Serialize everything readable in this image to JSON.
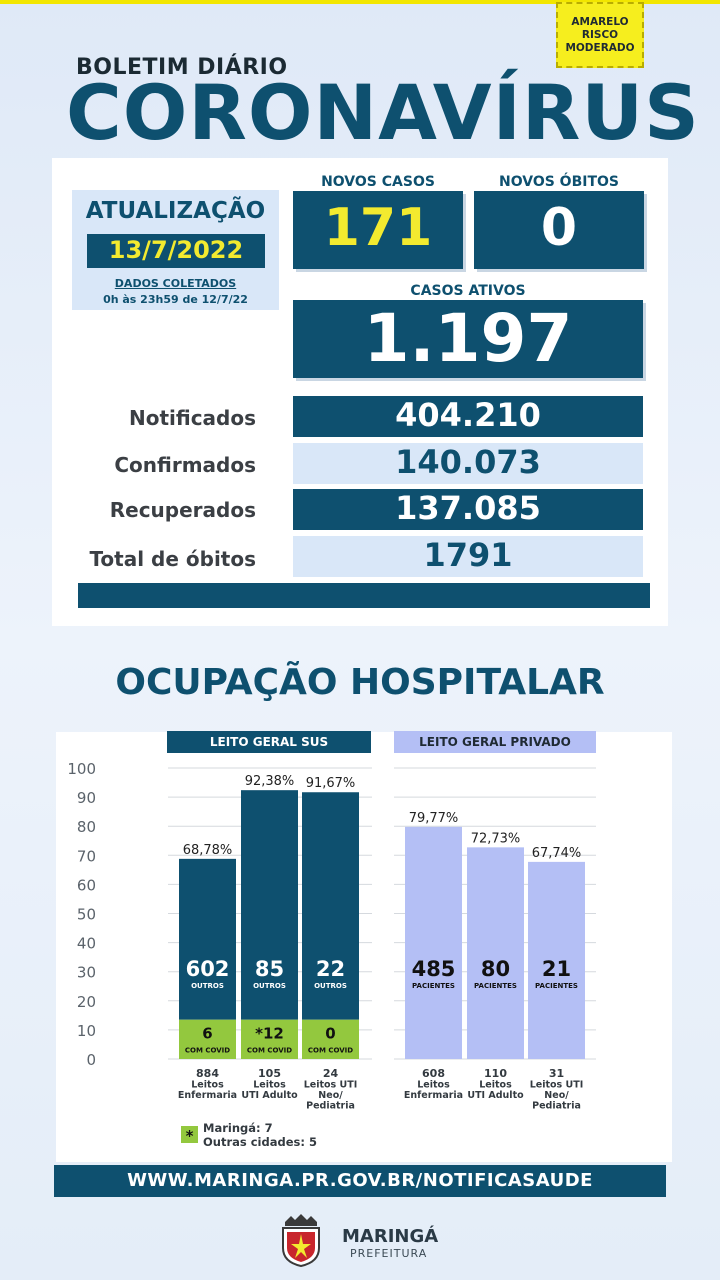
{
  "risk_badge": {
    "line1": "AMARELO",
    "line2": "RISCO",
    "line3": "MODERADO"
  },
  "header": {
    "subtitle": "BOLETIM DIÁRIO",
    "title": "CORONAVÍRUS"
  },
  "update": {
    "title": "ATUALIZAÇÃO",
    "date": "13/7/2022",
    "collected_label": "DADOS COLETADOS",
    "collected_range": "0h às 23h59 de 12/7/22"
  },
  "new_cases": {
    "label": "NOVOS CASOS",
    "value": "171"
  },
  "new_deaths": {
    "label": "NOVOS ÓBITOS",
    "value": "0"
  },
  "active_cases": {
    "label": "CASOS ATIVOS",
    "value": "1.197"
  },
  "stats": [
    {
      "label": "Notificados",
      "value": "404.210"
    },
    {
      "label": "Confirmados",
      "value": "140.073"
    },
    {
      "label": "Recuperados",
      "value": "137.085"
    },
    {
      "label": "Total de óbitos",
      "value": "1791"
    }
  ],
  "colors": {
    "dark_blue": "#0e506f",
    "light_blue": "#d9e7f8",
    "yellow": "#f3ea2f",
    "covid_green": "#93c83e",
    "private_bar": "#b4bff5"
  },
  "section_title": "OCUPAÇÃO HOSPITALAR",
  "chart_data": {
    "type": "bar",
    "ylim": [
      0,
      100
    ],
    "yticks": [
      "100",
      "90",
      "80",
      "70",
      "60",
      "50",
      "40",
      "30",
      "20",
      "10",
      "0"
    ],
    "groups": [
      {
        "header": "LEITO GERAL SUS",
        "bars": [
          {
            "pct": 68.78,
            "pct_label": "68,78%",
            "others": "602",
            "others_label": "OUTROS",
            "covid": "6",
            "covid_label": "COM COVID",
            "covid_pct": 13.5,
            "cat1": "884",
            "cat2": "Leitos",
            "cat3": "Enfermaria",
            "cat4": ""
          },
          {
            "pct": 92.38,
            "pct_label": "92,38%",
            "others": "85",
            "others_label": "OUTROS",
            "covid": "*12",
            "covid_label": "COM COVID",
            "covid_pct": 13.5,
            "cat1": "105",
            "cat2": "Leitos",
            "cat3": "UTI Adulto",
            "cat4": ""
          },
          {
            "pct": 91.67,
            "pct_label": "91,67%",
            "others": "22",
            "others_label": "OUTROS",
            "covid": "0",
            "covid_label": "COM COVID",
            "covid_pct": 13.5,
            "cat1": "24",
            "cat2": "Leitos UTI",
            "cat3": "Neo/",
            "cat4": "Pediatria"
          }
        ]
      },
      {
        "header": "LEITO GERAL PRIVADO",
        "bars": [
          {
            "pct": 79.77,
            "pct_label": "79,77%",
            "others": "485",
            "others_label": "PACIENTES",
            "cat1": "608",
            "cat2": "Leitos",
            "cat3": "Enfermaria",
            "cat4": ""
          },
          {
            "pct": 72.73,
            "pct_label": "72,73%",
            "others": "80",
            "others_label": "PACIENTES",
            "cat1": "110",
            "cat2": "Leitos",
            "cat3": "UTI Adulto",
            "cat4": ""
          },
          {
            "pct": 67.74,
            "pct_label": "67,74%",
            "others": "21",
            "others_label": "PACIENTES",
            "cat1": "31",
            "cat2": "Leitos UTI",
            "cat3": "Neo/",
            "cat4": "Pediatria"
          }
        ]
      }
    ],
    "footnote": {
      "marker": "*",
      "line1": "Maringá: 7",
      "line2": "Outras cidades: 5"
    }
  },
  "footer": {
    "url": "WWW.MARINGA.PR.GOV.BR/NOTIFICASAUDE",
    "org_name": "MARINGÁ",
    "org_sub": "PREFEITURA"
  }
}
